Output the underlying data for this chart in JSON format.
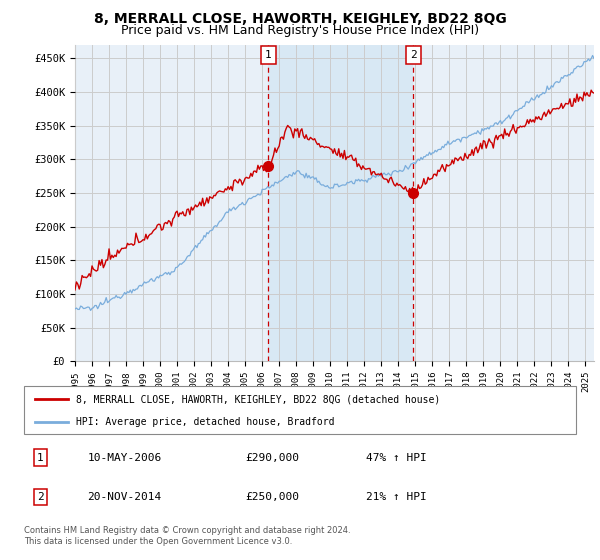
{
  "title": "8, MERRALL CLOSE, HAWORTH, KEIGHLEY, BD22 8QG",
  "subtitle": "Price paid vs. HM Land Registry's House Price Index (HPI)",
  "ylabel_ticks": [
    "£0",
    "£50K",
    "£100K",
    "£150K",
    "£200K",
    "£250K",
    "£300K",
    "£350K",
    "£400K",
    "£450K"
  ],
  "ytick_values": [
    0,
    50000,
    100000,
    150000,
    200000,
    250000,
    300000,
    350000,
    400000,
    450000
  ],
  "ylim": [
    0,
    470000
  ],
  "xlim_start": 1995.0,
  "xlim_end": 2025.5,
  "sale1_date": 2006.36,
  "sale1_price": 290000,
  "sale2_date": 2014.89,
  "sale2_price": 250000,
  "red_line_color": "#cc0000",
  "blue_line_color": "#7aaddc",
  "shade_color": "#d8e8f4",
  "sale_marker_color": "#cc0000",
  "vline_color": "#cc0000",
  "grid_color": "#cccccc",
  "bg_color": "#e8f0f8",
  "legend_label1": "8, MERRALL CLOSE, HAWORTH, KEIGHLEY, BD22 8QG (detached house)",
  "legend_label2": "HPI: Average price, detached house, Bradford",
  "table_row1": [
    "1",
    "10-MAY-2006",
    "£290,000",
    "47% ↑ HPI"
  ],
  "table_row2": [
    "2",
    "20-NOV-2014",
    "£250,000",
    "21% ↑ HPI"
  ],
  "footnote": "Contains HM Land Registry data © Crown copyright and database right 2024.\nThis data is licensed under the Open Government Licence v3.0.",
  "title_fontsize": 10,
  "subtitle_fontsize": 9
}
